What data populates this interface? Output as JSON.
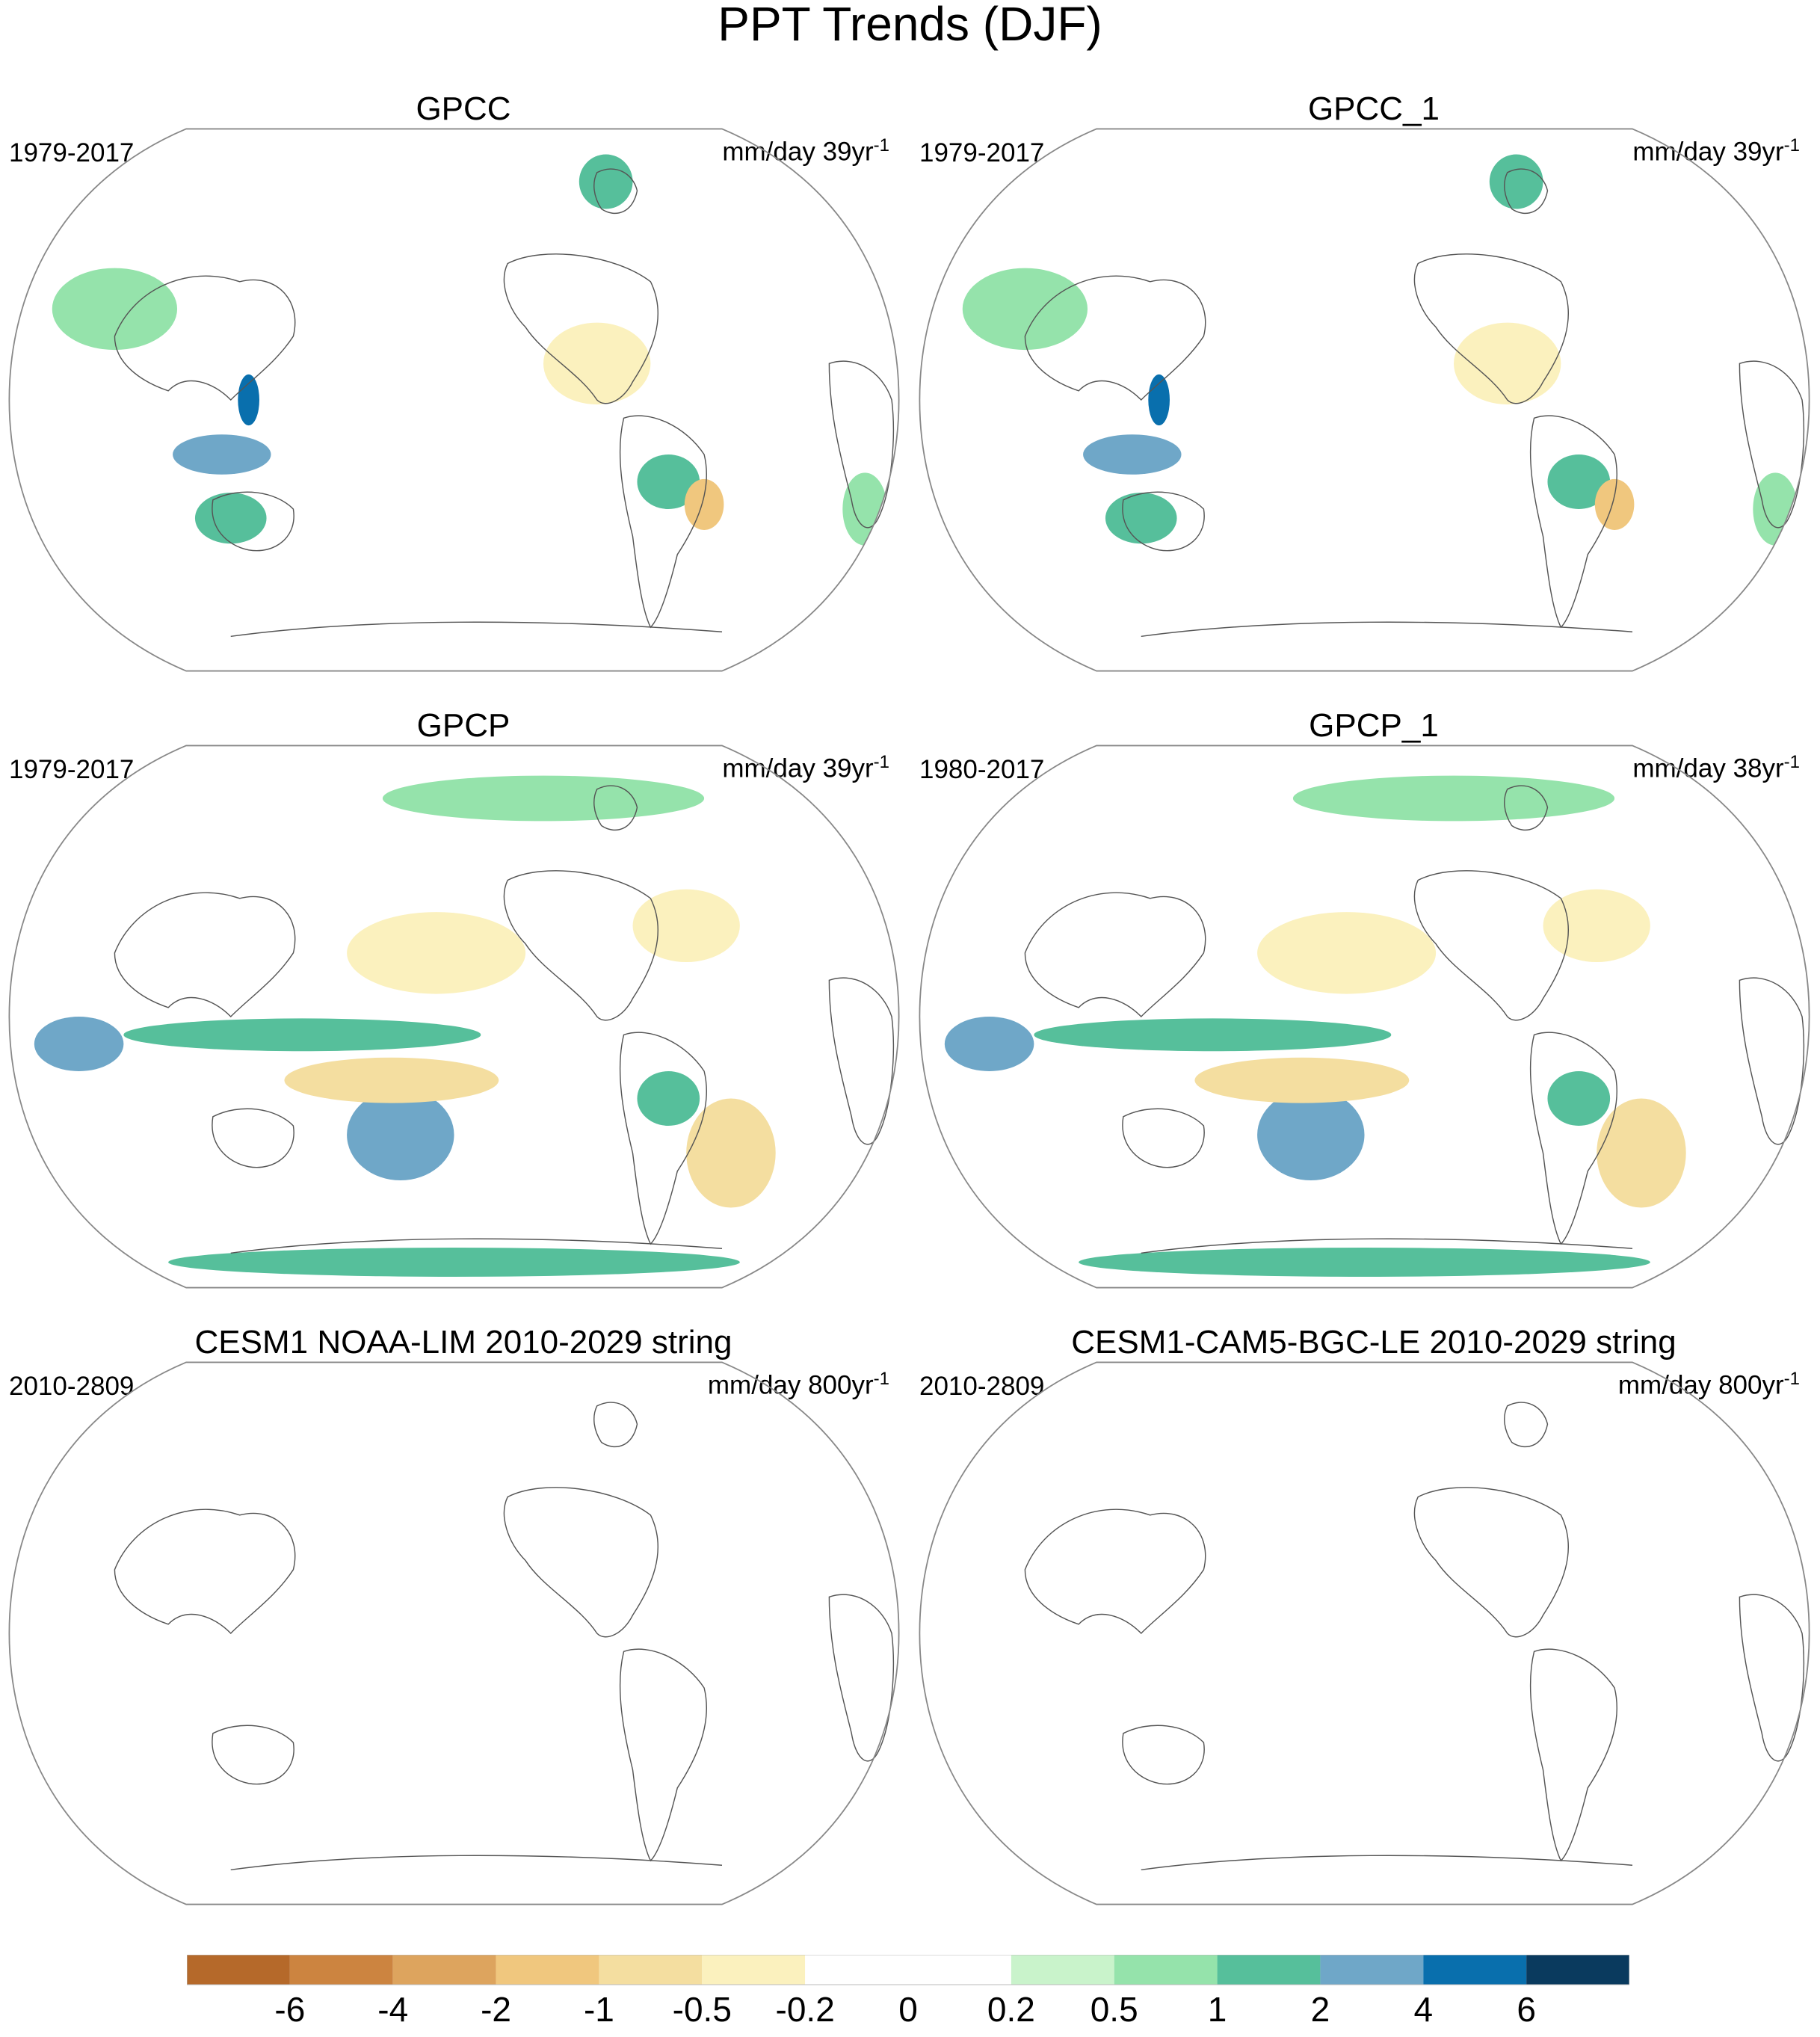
{
  "title": "PPT Trends (DJF)",
  "panels": [
    {
      "title": "GPCC",
      "period": "1979-2017",
      "units": "mm/day 39yr",
      "units_exp": "-1",
      "field": [
        {
          "region": "north-america",
          "value": -0.5
        },
        {
          "region": "amazon",
          "value": 1
        },
        {
          "region": "brazil-east",
          "value": -2
        },
        {
          "region": "maritime-continent",
          "value": 2
        },
        {
          "region": "philippines",
          "value": 4
        },
        {
          "region": "australia-north",
          "value": 1
        },
        {
          "region": "greenland",
          "value": 1
        },
        {
          "region": "eurasia",
          "value": 0.5
        },
        {
          "region": "africa-south",
          "value": 0.5
        }
      ]
    },
    {
      "title": "GPCC_1",
      "period": "1979-2017",
      "units": "mm/day 39yr",
      "units_exp": "-1",
      "field": [
        {
          "region": "north-america",
          "value": -0.5
        },
        {
          "region": "amazon",
          "value": 1
        },
        {
          "region": "brazil-east",
          "value": -2
        },
        {
          "region": "maritime-continent",
          "value": 2
        },
        {
          "region": "philippines",
          "value": 4
        },
        {
          "region": "australia-north",
          "value": 1
        },
        {
          "region": "greenland",
          "value": 1
        },
        {
          "region": "eurasia",
          "value": 0.5
        },
        {
          "region": "africa-south",
          "value": 0.5
        }
      ]
    },
    {
      "title": "GPCP",
      "period": "1979-2017",
      "units": "mm/day 39yr",
      "units_exp": "-1",
      "field": [
        {
          "region": "west-pacific-itcz",
          "value": 1
        },
        {
          "region": "indian-ocean",
          "value": 2
        },
        {
          "region": "spcz",
          "value": 2
        },
        {
          "region": "central-pacific",
          "value": -1
        },
        {
          "region": "north-pacific",
          "value": -0.5
        },
        {
          "region": "north-atlantic",
          "value": -0.5
        },
        {
          "region": "south-atlantic",
          "value": -1
        },
        {
          "region": "southern-ocean",
          "value": 1
        },
        {
          "region": "amazon",
          "value": 1
        },
        {
          "region": "arctic",
          "value": 0.5
        }
      ]
    },
    {
      "title": "GPCP_1",
      "period": "1980-2017",
      "units": "mm/day 38yr",
      "units_exp": "-1",
      "field": [
        {
          "region": "west-pacific-itcz",
          "value": 1
        },
        {
          "region": "indian-ocean",
          "value": 2
        },
        {
          "region": "spcz",
          "value": 2
        },
        {
          "region": "central-pacific",
          "value": -1
        },
        {
          "region": "north-pacific",
          "value": -0.5
        },
        {
          "region": "north-atlantic",
          "value": -0.5
        },
        {
          "region": "south-atlantic",
          "value": -1
        },
        {
          "region": "southern-ocean",
          "value": 1
        },
        {
          "region": "amazon",
          "value": 1
        },
        {
          "region": "arctic",
          "value": 0.5
        }
      ]
    },
    {
      "title": "CESM1 NOAA-LIM 2010-2029 string",
      "period": "2010-2809",
      "units": "mm/day 800yr",
      "units_exp": "-1",
      "field": []
    },
    {
      "title": "CESM1-CAM5-BGC-LE 2010-2029 string",
      "period": "2010-2809",
      "units": "mm/day 800yr",
      "units_exp": "-1",
      "field": []
    }
  ],
  "chart_data": {
    "type": "heatmap",
    "title": "PPT Trends (DJF)",
    "season": "DJF",
    "projection": "Robinson, Pacific-centered",
    "colorbar": {
      "levels": [
        -6,
        -4,
        -2,
        -1,
        -0.5,
        -0.2,
        0,
        0.2,
        0.5,
        1,
        2,
        4,
        6
      ],
      "tick_labels": [
        "-6",
        "-4",
        "-2",
        "-1",
        "-0.5",
        "-0.2",
        "0",
        "0.2",
        "0.5",
        "1",
        "2",
        "4",
        "6"
      ],
      "colors": [
        "#b5692a",
        "#cc8440",
        "#dda45e",
        "#f0c77e",
        "#f4dea0",
        "#fbf1be",
        "#ffffff",
        "#ffffff",
        "#c9f3cb",
        "#95e3ab",
        "#56bf9b",
        "#6fa7c8",
        "#096fad",
        "#0a3a5e"
      ]
    },
    "panels": [
      "GPCC",
      "GPCC_1",
      "GPCP",
      "GPCP_1",
      "CESM1 NOAA-LIM 2010-2029 string",
      "CESM1-CAM5-BGC-LE 2010-2029 string"
    ]
  }
}
